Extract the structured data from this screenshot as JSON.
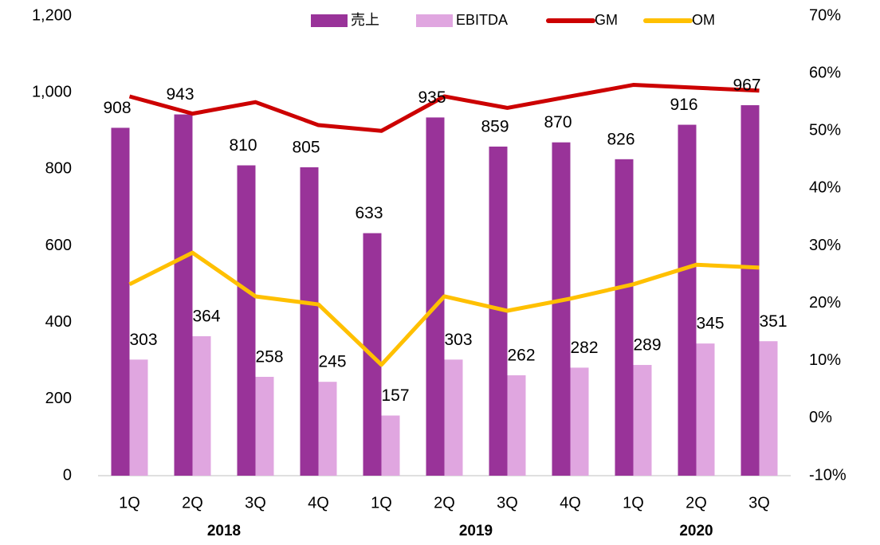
{
  "chart_data": {
    "type": "bar_line",
    "categories": [
      "1Q",
      "2Q",
      "3Q",
      "4Q",
      "1Q",
      "2Q",
      "3Q",
      "4Q",
      "1Q",
      "2Q",
      "3Q"
    ],
    "category_groups": [
      {
        "label": "2018",
        "span": 4
      },
      {
        "label": "2019",
        "span": 4
      },
      {
        "label": "2020",
        "span": 3
      }
    ],
    "series": [
      {
        "name": "売上",
        "type": "bar",
        "color": "#993399",
        "values": [
          908,
          943,
          810,
          805,
          633,
          935,
          859,
          870,
          826,
          916,
          967
        ]
      },
      {
        "name": "EBITDA",
        "type": "bar",
        "color": "#e0a6e0",
        "values": [
          303,
          364,
          258,
          245,
          157,
          303,
          262,
          282,
          289,
          345,
          351
        ]
      },
      {
        "name": "GM",
        "type": "line",
        "axis": "y2",
        "color": "#cc0000",
        "values": [
          56,
          53,
          55,
          51,
          50,
          56,
          54,
          56,
          58,
          57.5,
          57
        ]
      },
      {
        "name": "OM",
        "type": "line",
        "axis": "y2",
        "color": "#ffc000",
        "values": [
          23.3,
          28.8,
          21.2,
          19.8,
          9.3,
          21.2,
          18.7,
          20.8,
          23.3,
          26.7,
          26.2
        ]
      }
    ],
    "ylim": [
      0,
      1200
    ],
    "yticks": [
      0,
      200,
      400,
      600,
      800,
      {
        "value": 1000,
        "label": "1,000"
      },
      {
        "value": 1200,
        "label": "1,200"
      }
    ],
    "y2lim": [
      -10,
      70
    ],
    "y2ticks": [
      {
        "value": -10,
        "label": "-10%"
      },
      {
        "value": 0,
        "label": "0%"
      },
      {
        "value": 10,
        "label": "10%"
      },
      {
        "value": 20,
        "label": "20%"
      },
      {
        "value": 30,
        "label": "30%"
      },
      {
        "value": 40,
        "label": "40%"
      },
      {
        "value": 50,
        "label": "50%"
      },
      {
        "value": 60,
        "label": "60%"
      },
      {
        "value": 70,
        "label": "70%"
      }
    ],
    "grid": false,
    "legend": "top"
  }
}
